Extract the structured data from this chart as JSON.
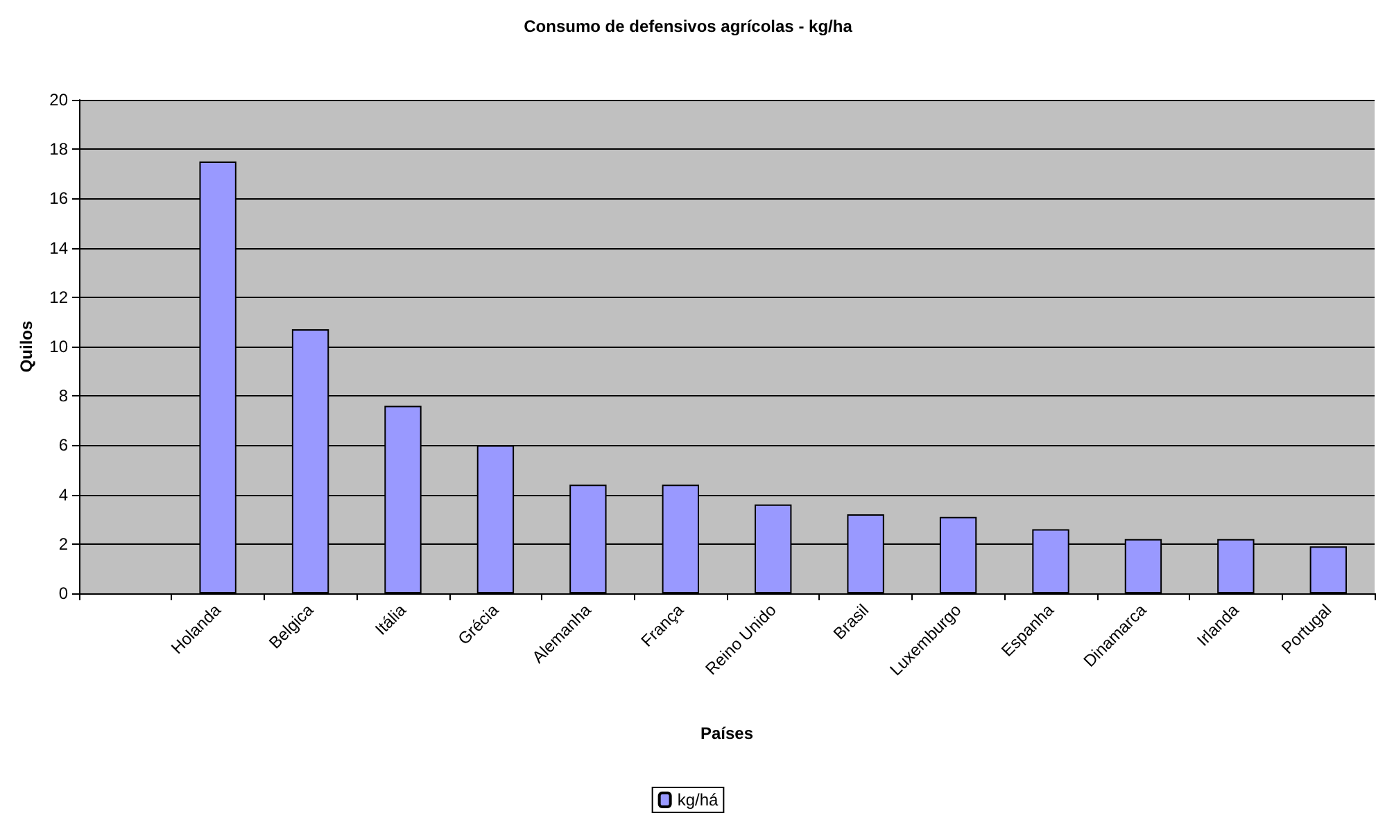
{
  "chart_data": {
    "type": "bar",
    "title": "Consumo de defensivos agrícolas - kg/ha",
    "xlabel": "Países",
    "ylabel": "Quilos",
    "categories": [
      null,
      "Holanda",
      "Belgica",
      "Itália",
      "Grécia",
      "Alemanha",
      "França",
      "Reino Unido",
      "Brasil",
      "Luxemburgo",
      "Espanha",
      "Dinamarca",
      "Irlanda",
      "Portugal"
    ],
    "series": [
      {
        "name": "kg/há",
        "color": "#9999ff",
        "values": [
          null,
          17.5,
          10.7,
          7.6,
          6.0,
          4.4,
          4.4,
          3.6,
          3.2,
          3.1,
          2.6,
          2.2,
          2.2,
          1.9
        ]
      }
    ],
    "ylim": [
      0,
      20
    ],
    "yticks": [
      0,
      2,
      4,
      6,
      8,
      10,
      12,
      14,
      16,
      18,
      20
    ],
    "grid": "y",
    "legend": "bottom"
  }
}
